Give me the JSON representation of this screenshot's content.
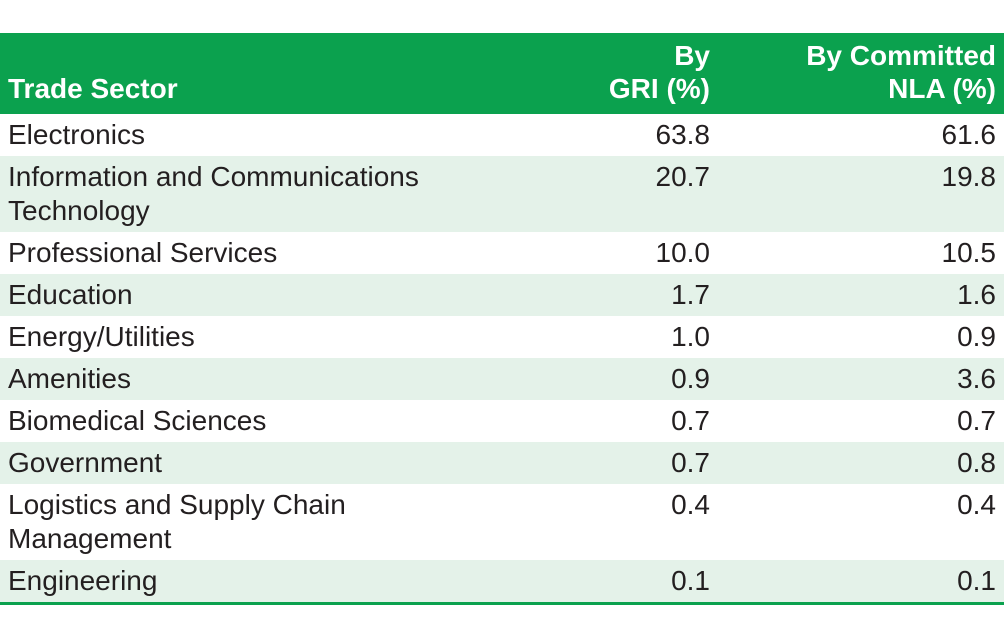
{
  "table": {
    "header": {
      "trade_sector": "Trade Sector",
      "gri_line1": "By",
      "gri_line2": "GRI (%)",
      "nla_line1": "By Committed",
      "nla_line2": "NLA (%)"
    },
    "rows": [
      {
        "sector": "Electronics",
        "gri": "63.8",
        "nla": "61.6"
      },
      {
        "sector": "Information and Communications Technology",
        "gri": "20.7",
        "nla": "19.8"
      },
      {
        "sector": "Professional Services",
        "gri": "10.0",
        "nla": "10.5"
      },
      {
        "sector": "Education",
        "gri": "1.7",
        "nla": "1.6"
      },
      {
        "sector": "Energy/Utilities",
        "gri": "1.0",
        "nla": "0.9"
      },
      {
        "sector": "Amenities",
        "gri": "0.9",
        "nla": "3.6"
      },
      {
        "sector": "Biomedical Sciences",
        "gri": "0.7",
        "nla": "0.7"
      },
      {
        "sector": "Government",
        "gri": "0.7",
        "nla": "0.8"
      },
      {
        "sector": "Logistics and Supply Chain Management",
        "gri": "0.4",
        "nla": "0.4"
      },
      {
        "sector": "Engineering",
        "gri": "0.1",
        "nla": "0.1"
      }
    ],
    "colors": {
      "header_bg": "#0ba14e",
      "header_text": "#ffffff",
      "row_bg": "#ffffff",
      "row_alt_bg": "#e4f2e9",
      "body_text": "#231f20",
      "bottom_border": "#0ba14e"
    }
  },
  "chart_data": {
    "type": "table",
    "title": "Trade Sector breakdown",
    "columns": [
      "Trade Sector",
      "By GRI (%)",
      "By Committed NLA (%)"
    ],
    "rows": [
      [
        "Electronics",
        63.8,
        61.6
      ],
      [
        "Information and Communications Technology",
        20.7,
        19.8
      ],
      [
        "Professional Services",
        10.0,
        10.5
      ],
      [
        "Education",
        1.7,
        1.6
      ],
      [
        "Energy/Utilities",
        1.0,
        0.9
      ],
      [
        "Amenities",
        0.9,
        3.6
      ],
      [
        "Biomedical Sciences",
        0.7,
        0.7
      ],
      [
        "Government",
        0.7,
        0.8
      ],
      [
        "Logistics and Supply Chain Management",
        0.4,
        0.4
      ],
      [
        "Engineering",
        0.1,
        0.1
      ]
    ],
    "layout": {
      "striped": true,
      "header_background": "#0ba14e",
      "stripe_background": "#e4f2e9",
      "numeric_alignment": "right"
    }
  }
}
